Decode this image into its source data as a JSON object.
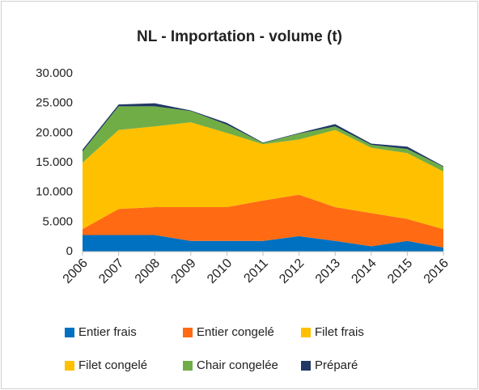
{
  "chart_data": {
    "type": "stacked_area",
    "title": "NL - Importation - volume (t)",
    "categories": [
      "2006",
      "2007",
      "2008",
      "2009",
      "2010",
      "2011",
      "2012",
      "2013",
      "2014",
      "2015",
      "2016"
    ],
    "series": [
      {
        "name": "Entier frais",
        "color": "#0070c0",
        "values": [
          2800,
          2800,
          2800,
          1800,
          1800,
          1800,
          2600,
          1800,
          900,
          1800,
          700
        ]
      },
      {
        "name": "Entier congelé",
        "color": "#ff6a13",
        "values": [
          1000,
          4400,
          4700,
          5700,
          5700,
          6800,
          7000,
          5700,
          5600,
          3700,
          3100
        ]
      },
      {
        "name": "Filet frais",
        "color": "#ffc000",
        "values": [
          11200,
          13300,
          13600,
          14300,
          12500,
          9500,
          9300,
          13000,
          11000,
          11100,
          9700
        ]
      },
      {
        "name": "Filet congelé",
        "color": "#ffc000",
        "values": [
          0,
          0,
          0,
          0,
          0,
          0,
          0,
          0,
          0,
          0,
          0
        ]
      },
      {
        "name": "Chair congelée",
        "color": "#70ad47",
        "values": [
          1900,
          4000,
          3400,
          1900,
          1400,
          200,
          1000,
          600,
          500,
          700,
          800
        ]
      },
      {
        "name": "Préparé",
        "color": "#203864",
        "values": [
          300,
          300,
          500,
          100,
          300,
          100,
          100,
          400,
          200,
          400,
          100
        ]
      }
    ],
    "ylim": [
      0,
      30000
    ],
    "yticks": [
      0,
      {
        "value": 5000,
        "label": "5.000"
      },
      {
        "value": 10000,
        "label": "10.000"
      },
      {
        "value": 15000,
        "label": "15.000"
      },
      {
        "value": 20000,
        "label": "20.000"
      },
      {
        "value": 25000,
        "label": "25.000"
      },
      {
        "value": 30000,
        "label": "30.000"
      }
    ],
    "grid": false
  }
}
